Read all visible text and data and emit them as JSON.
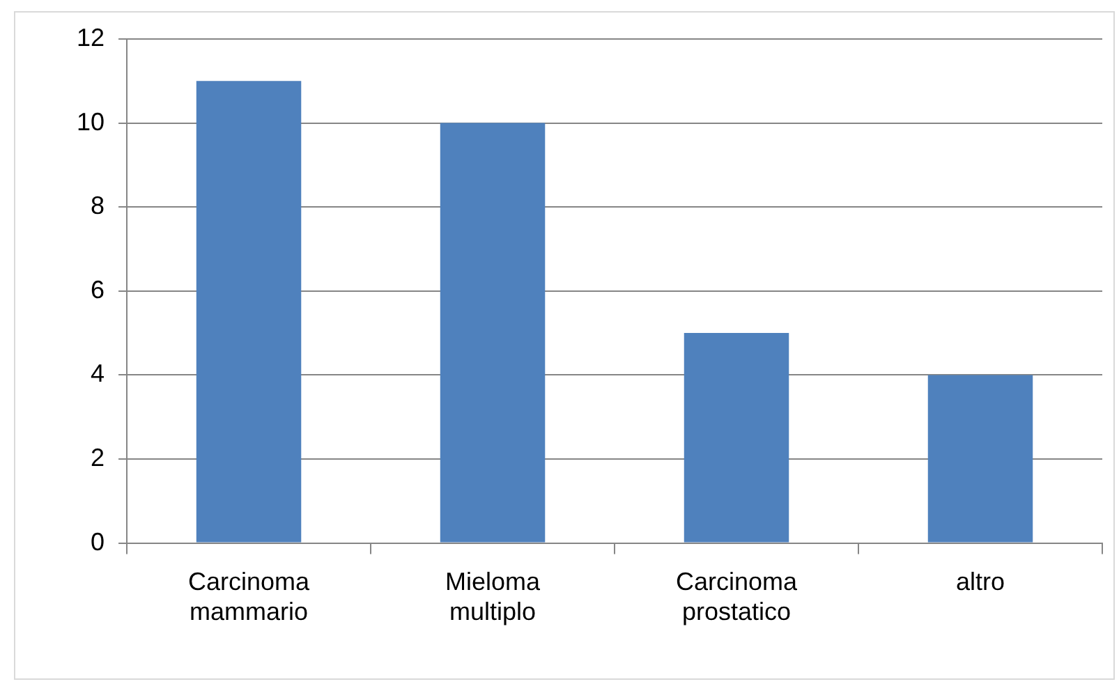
{
  "chart_data": {
    "type": "bar",
    "categories": [
      "Carcinoma mammario",
      "Mieloma multiplo",
      "Carcinoma prostatico",
      "altro"
    ],
    "values": [
      11,
      10,
      5,
      4
    ],
    "color": "#4f81bd",
    "ylim": [
      0,
      12
    ],
    "yticks": [
      0,
      2,
      4,
      6,
      8,
      10,
      12
    ],
    "grid": "y",
    "legend": false
  }
}
